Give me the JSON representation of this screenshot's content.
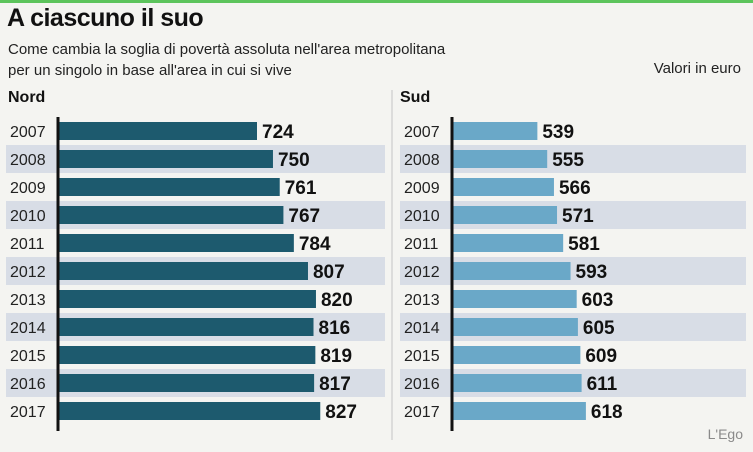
{
  "title": "A ciascuno il suo",
  "subtitle_lines": [
    "Come cambia la soglia di povertà assoluta nell'area metropolitana",
    "per un singolo in base all'area in cui si vive"
  ],
  "units": "Valori in euro",
  "credit": "L'Ego",
  "colors": {
    "nord": "#1d5a6e",
    "sud": "#6aa8c8",
    "stripe": "#d8dde6"
  },
  "chart_data": [
    {
      "type": "bar",
      "orientation": "horizontal",
      "panel_title": "Nord",
      "categories": [
        "2007",
        "2008",
        "2009",
        "2010",
        "2011",
        "2012",
        "2013",
        "2014",
        "2015",
        "2016",
        "2017"
      ],
      "values": [
        724,
        750,
        761,
        767,
        784,
        807,
        820,
        816,
        819,
        817,
        827
      ],
      "xlim": [
        400,
        850
      ],
      "grid": false
    },
    {
      "type": "bar",
      "orientation": "horizontal",
      "panel_title": "Sud",
      "categories": [
        "2007",
        "2008",
        "2009",
        "2010",
        "2011",
        "2012",
        "2013",
        "2014",
        "2015",
        "2016",
        "2017"
      ],
      "values": [
        539,
        555,
        566,
        571,
        581,
        593,
        603,
        605,
        609,
        611,
        618
      ],
      "xlim": [
        400,
        850
      ],
      "grid": false
    }
  ]
}
